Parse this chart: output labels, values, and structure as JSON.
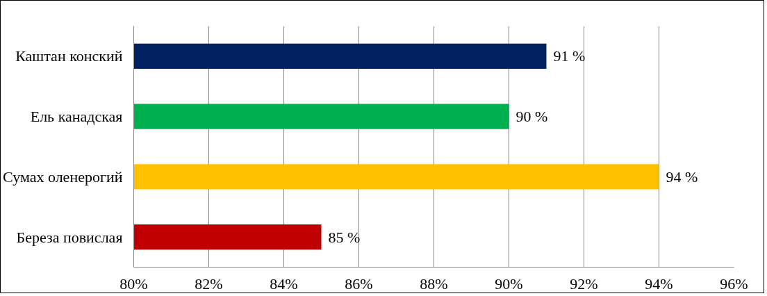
{
  "chart_data": {
    "type": "bar",
    "orientation": "horizontal",
    "categories": [
      "Каштан конский",
      "Ель канадская",
      "Сумах оленерогий",
      "Береза повислая"
    ],
    "values": [
      91,
      90,
      94,
      85
    ],
    "colors": [
      "#002060",
      "#00b050",
      "#ffc000",
      "#c00000"
    ],
    "value_labels": [
      "91 %",
      "90 %",
      "94 %",
      "85 %"
    ],
    "xlim": [
      80,
      96
    ],
    "xticks": [
      {
        "value": 80,
        "label": "80%"
      },
      {
        "value": 82,
        "label": "82%"
      },
      {
        "value": 84,
        "label": "84%"
      },
      {
        "value": 86,
        "label": "86%"
      },
      {
        "value": 88,
        "label": "88%"
      },
      {
        "value": 90,
        "label": "90%"
      },
      {
        "value": 92,
        "label": "92%"
      },
      {
        "value": 94,
        "label": "94%"
      },
      {
        "value": 96,
        "label": "96%"
      }
    ],
    "grid": "x"
  }
}
